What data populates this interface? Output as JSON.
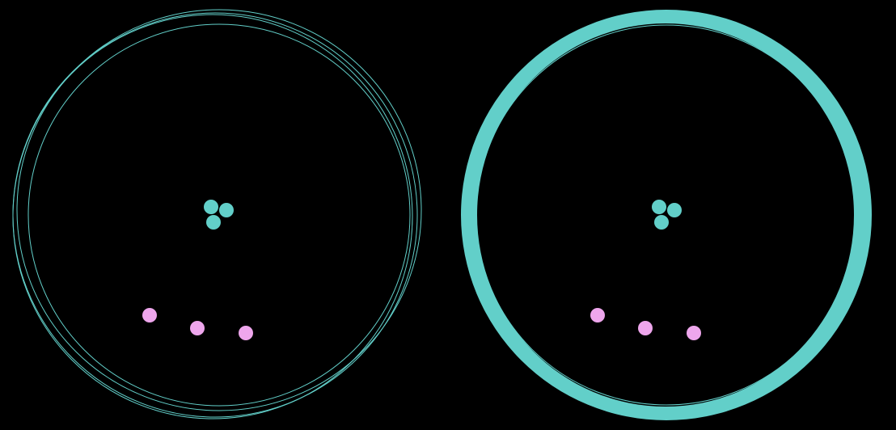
{
  "colors": {
    "background": "#000000",
    "ring": "#62cfc9",
    "orbit_fill": "#62cfc9",
    "center_dot": "#62cfc9",
    "outer_dot": "#eea6ec"
  },
  "panels": [
    {
      "id": "left",
      "orbit_style": "outline",
      "rings": 4,
      "center_dots": 3,
      "outer_dots": 3
    },
    {
      "id": "right",
      "orbit_style": "filled-crescent",
      "rings": 2,
      "center_dots": 3,
      "outer_dots": 3
    }
  ]
}
